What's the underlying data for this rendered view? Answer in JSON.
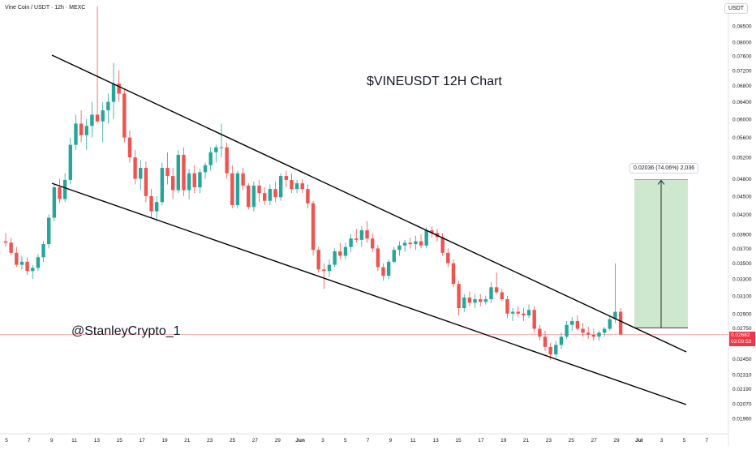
{
  "header": {
    "symbol": "Vine Coin / USDT · 12h · MEXC",
    "currency": "USDT"
  },
  "title": "$VINEUSDT 12H Chart",
  "watermark": "@StanleyCrypto_1",
  "measure": {
    "label": "0.02036 (74.06%) 2,036",
    "from_price": 0.0275,
    "to_price": 0.04786,
    "fill": "#c8e6c9"
  },
  "current_price": {
    "price": "0.02682",
    "countdown": "03:09:53",
    "value": 0.02682
  },
  "colors": {
    "up": "#26a69a",
    "down": "#ef5350",
    "line": "#000000",
    "price_line": "#f23645"
  },
  "chart_data": {
    "type": "candlestick",
    "interval": "12h",
    "y_scale": "log",
    "ylim": [
      0.0188,
      0.0915
    ],
    "y_ticks": [
      "0.08500",
      "0.08000",
      "0.07600",
      "0.07200",
      "0.06800",
      "0.06400",
      "0.06000",
      "0.05600",
      "0.05200",
      "0.04800",
      "0.04500",
      "0.04200",
      "0.03900",
      "0.03700",
      "0.03500",
      "0.03300",
      "0.03100",
      "0.02900",
      "0.02750",
      "0.02600",
      "0.02450",
      "0.02310",
      "0.02190",
      "0.02070",
      "0.01960"
    ],
    "x_ticks": [
      "5",
      "7",
      "9",
      "11",
      "13",
      "15",
      "17",
      "19",
      "21",
      "23",
      "25",
      "27",
      "29",
      "Jun",
      "3",
      "5",
      "7",
      "9",
      "11",
      "13",
      "15",
      "17",
      "19",
      "21",
      "23",
      "25",
      "27",
      "29",
      "Jul",
      "3",
      "5",
      "7"
    ],
    "candles": [
      {
        "o": 0.038,
        "h": 0.0392,
        "l": 0.0372,
        "c": 0.0378
      },
      {
        "o": 0.0378,
        "h": 0.0385,
        "l": 0.0361,
        "c": 0.0364
      },
      {
        "o": 0.0364,
        "h": 0.0372,
        "l": 0.0345,
        "c": 0.0348
      },
      {
        "o": 0.0348,
        "h": 0.036,
        "l": 0.0342,
        "c": 0.0352
      },
      {
        "o": 0.0352,
        "h": 0.0358,
        "l": 0.0335,
        "c": 0.034
      },
      {
        "o": 0.034,
        "h": 0.0348,
        "l": 0.033,
        "c": 0.0344
      },
      {
        "o": 0.0344,
        "h": 0.0362,
        "l": 0.034,
        "c": 0.0358
      },
      {
        "o": 0.0358,
        "h": 0.038,
        "l": 0.0352,
        "c": 0.0376
      },
      {
        "o": 0.0376,
        "h": 0.042,
        "l": 0.037,
        "c": 0.0415
      },
      {
        "o": 0.0415,
        "h": 0.047,
        "l": 0.041,
        "c": 0.0465
      },
      {
        "o": 0.0465,
        "h": 0.048,
        "l": 0.0438,
        "c": 0.0445
      },
      {
        "o": 0.0445,
        "h": 0.049,
        "l": 0.044,
        "c": 0.0478
      },
      {
        "o": 0.0478,
        "h": 0.056,
        "l": 0.047,
        "c": 0.0545
      },
      {
        "o": 0.0545,
        "h": 0.061,
        "l": 0.0535,
        "c": 0.059
      },
      {
        "o": 0.059,
        "h": 0.062,
        "l": 0.055,
        "c": 0.0565
      },
      {
        "o": 0.0565,
        "h": 0.06,
        "l": 0.0535,
        "c": 0.0585
      },
      {
        "o": 0.0585,
        "h": 0.064,
        "l": 0.056,
        "c": 0.061
      },
      {
        "o": 0.061,
        "h": 0.0915,
        "l": 0.059,
        "c": 0.0595
      },
      {
        "o": 0.0595,
        "h": 0.064,
        "l": 0.055,
        "c": 0.062
      },
      {
        "o": 0.062,
        "h": 0.066,
        "l": 0.059,
        "c": 0.064
      },
      {
        "o": 0.064,
        "h": 0.074,
        "l": 0.06,
        "c": 0.0685
      },
      {
        "o": 0.0685,
        "h": 0.072,
        "l": 0.064,
        "c": 0.066
      },
      {
        "o": 0.066,
        "h": 0.067,
        "l": 0.055,
        "c": 0.056
      },
      {
        "o": 0.056,
        "h": 0.0575,
        "l": 0.051,
        "c": 0.052
      },
      {
        "o": 0.052,
        "h": 0.0535,
        "l": 0.047,
        "c": 0.048
      },
      {
        "o": 0.048,
        "h": 0.0515,
        "l": 0.046,
        "c": 0.05
      },
      {
        "o": 0.05,
        "h": 0.0512,
        "l": 0.044,
        "c": 0.045
      },
      {
        "o": 0.045,
        "h": 0.0462,
        "l": 0.0415,
        "c": 0.0425
      },
      {
        "o": 0.0425,
        "h": 0.045,
        "l": 0.041,
        "c": 0.044
      },
      {
        "o": 0.044,
        "h": 0.051,
        "l": 0.0435,
        "c": 0.05
      },
      {
        "o": 0.05,
        "h": 0.053,
        "l": 0.047,
        "c": 0.0485
      },
      {
        "o": 0.0485,
        "h": 0.05,
        "l": 0.0445,
        "c": 0.046
      },
      {
        "o": 0.046,
        "h": 0.0535,
        "l": 0.0455,
        "c": 0.0525
      },
      {
        "o": 0.0525,
        "h": 0.054,
        "l": 0.045,
        "c": 0.046
      },
      {
        "o": 0.046,
        "h": 0.0498,
        "l": 0.0445,
        "c": 0.049
      },
      {
        "o": 0.049,
        "h": 0.0505,
        "l": 0.0455,
        "c": 0.0465
      },
      {
        "o": 0.0465,
        "h": 0.0498,
        "l": 0.0455,
        "c": 0.0492
      },
      {
        "o": 0.0492,
        "h": 0.051,
        "l": 0.048,
        "c": 0.0505
      },
      {
        "o": 0.0505,
        "h": 0.054,
        "l": 0.0495,
        "c": 0.053
      },
      {
        "o": 0.053,
        "h": 0.0545,
        "l": 0.051,
        "c": 0.054
      },
      {
        "o": 0.054,
        "h": 0.059,
        "l": 0.052,
        "c": 0.054
      },
      {
        "o": 0.054,
        "h": 0.055,
        "l": 0.048,
        "c": 0.049
      },
      {
        "o": 0.049,
        "h": 0.0505,
        "l": 0.043,
        "c": 0.0435
      },
      {
        "o": 0.0435,
        "h": 0.0495,
        "l": 0.043,
        "c": 0.049
      },
      {
        "o": 0.049,
        "h": 0.05,
        "l": 0.046,
        "c": 0.0468
      },
      {
        "o": 0.0468,
        "h": 0.0472,
        "l": 0.0428,
        "c": 0.0432
      },
      {
        "o": 0.0432,
        "h": 0.0475,
        "l": 0.0425,
        "c": 0.0468
      },
      {
        "o": 0.0468,
        "h": 0.0478,
        "l": 0.044,
        "c": 0.0455
      },
      {
        "o": 0.0455,
        "h": 0.0465,
        "l": 0.0435,
        "c": 0.0442
      },
      {
        "o": 0.0442,
        "h": 0.047,
        "l": 0.0435,
        "c": 0.0462
      },
      {
        "o": 0.0462,
        "h": 0.0475,
        "l": 0.044,
        "c": 0.0448
      },
      {
        "o": 0.0448,
        "h": 0.049,
        "l": 0.0442,
        "c": 0.0485
      },
      {
        "o": 0.0485,
        "h": 0.0495,
        "l": 0.0465,
        "c": 0.0478
      },
      {
        "o": 0.0478,
        "h": 0.049,
        "l": 0.0455,
        "c": 0.0462
      },
      {
        "o": 0.0462,
        "h": 0.0478,
        "l": 0.0455,
        "c": 0.0472
      },
      {
        "o": 0.0472,
        "h": 0.048,
        "l": 0.0455,
        "c": 0.0462
      },
      {
        "o": 0.0462,
        "h": 0.047,
        "l": 0.043,
        "c": 0.0438
      },
      {
        "o": 0.0438,
        "h": 0.0442,
        "l": 0.036,
        "c": 0.0368
      },
      {
        "o": 0.0368,
        "h": 0.0372,
        "l": 0.0338,
        "c": 0.0342
      },
      {
        "o": 0.0342,
        "h": 0.035,
        "l": 0.0318,
        "c": 0.034
      },
      {
        "o": 0.034,
        "h": 0.0355,
        "l": 0.0333,
        "c": 0.0348
      },
      {
        "o": 0.0348,
        "h": 0.037,
        "l": 0.0345,
        "c": 0.0366
      },
      {
        "o": 0.0366,
        "h": 0.0378,
        "l": 0.0355,
        "c": 0.036
      },
      {
        "o": 0.036,
        "h": 0.0378,
        "l": 0.0355,
        "c": 0.0372
      },
      {
        "o": 0.0372,
        "h": 0.039,
        "l": 0.0365,
        "c": 0.0384
      },
      {
        "o": 0.0384,
        "h": 0.0398,
        "l": 0.0378,
        "c": 0.0382
      },
      {
        "o": 0.0382,
        "h": 0.0402,
        "l": 0.0372,
        "c": 0.0396
      },
      {
        "o": 0.0396,
        "h": 0.041,
        "l": 0.0378,
        "c": 0.0384
      },
      {
        "o": 0.0384,
        "h": 0.0392,
        "l": 0.0365,
        "c": 0.037
      },
      {
        "o": 0.037,
        "h": 0.0375,
        "l": 0.034,
        "c": 0.0345
      },
      {
        "o": 0.0345,
        "h": 0.035,
        "l": 0.0328,
        "c": 0.0334
      },
      {
        "o": 0.0334,
        "h": 0.0355,
        "l": 0.033,
        "c": 0.0352
      },
      {
        "o": 0.0352,
        "h": 0.0372,
        "l": 0.035,
        "c": 0.0368
      },
      {
        "o": 0.0368,
        "h": 0.038,
        "l": 0.036,
        "c": 0.0374
      },
      {
        "o": 0.0374,
        "h": 0.0382,
        "l": 0.0365,
        "c": 0.0378
      },
      {
        "o": 0.0378,
        "h": 0.0385,
        "l": 0.037,
        "c": 0.0376
      },
      {
        "o": 0.0376,
        "h": 0.0388,
        "l": 0.0368,
        "c": 0.038
      },
      {
        "o": 0.038,
        "h": 0.039,
        "l": 0.037,
        "c": 0.0374
      },
      {
        "o": 0.0374,
        "h": 0.04,
        "l": 0.037,
        "c": 0.0396
      },
      {
        "o": 0.0396,
        "h": 0.0402,
        "l": 0.0385,
        "c": 0.0392
      },
      {
        "o": 0.0392,
        "h": 0.0398,
        "l": 0.038,
        "c": 0.0386
      },
      {
        "o": 0.0386,
        "h": 0.0392,
        "l": 0.036,
        "c": 0.0364
      },
      {
        "o": 0.0364,
        "h": 0.037,
        "l": 0.0345,
        "c": 0.035
      },
      {
        "o": 0.035,
        "h": 0.0355,
        "l": 0.032,
        "c": 0.0324
      },
      {
        "o": 0.0324,
        "h": 0.0328,
        "l": 0.0288,
        "c": 0.0296
      },
      {
        "o": 0.0296,
        "h": 0.0312,
        "l": 0.0292,
        "c": 0.0308
      },
      {
        "o": 0.0308,
        "h": 0.0315,
        "l": 0.0298,
        "c": 0.0302
      },
      {
        "o": 0.0302,
        "h": 0.0312,
        "l": 0.0296,
        "c": 0.0306
      },
      {
        "o": 0.0306,
        "h": 0.0312,
        "l": 0.0298,
        "c": 0.0303
      },
      {
        "o": 0.0303,
        "h": 0.031,
        "l": 0.03,
        "c": 0.0306
      },
      {
        "o": 0.0306,
        "h": 0.0326,
        "l": 0.0302,
        "c": 0.032
      },
      {
        "o": 0.032,
        "h": 0.0338,
        "l": 0.0312,
        "c": 0.0314
      },
      {
        "o": 0.0314,
        "h": 0.0318,
        "l": 0.0304,
        "c": 0.0306
      },
      {
        "o": 0.0306,
        "h": 0.031,
        "l": 0.0285,
        "c": 0.029
      },
      {
        "o": 0.029,
        "h": 0.0296,
        "l": 0.0282,
        "c": 0.0292
      },
      {
        "o": 0.0292,
        "h": 0.0298,
        "l": 0.0286,
        "c": 0.029
      },
      {
        "o": 0.029,
        "h": 0.0296,
        "l": 0.0282,
        "c": 0.0288
      },
      {
        "o": 0.0288,
        "h": 0.03,
        "l": 0.0285,
        "c": 0.0294
      },
      {
        "o": 0.0294,
        "h": 0.0298,
        "l": 0.027,
        "c": 0.0274
      },
      {
        "o": 0.0274,
        "h": 0.0278,
        "l": 0.0262,
        "c": 0.0266
      },
      {
        "o": 0.0266,
        "h": 0.0272,
        "l": 0.0252,
        "c": 0.0256
      },
      {
        "o": 0.0256,
        "h": 0.026,
        "l": 0.0244,
        "c": 0.0249
      },
      {
        "o": 0.0249,
        "h": 0.0262,
        "l": 0.0246,
        "c": 0.0258
      },
      {
        "o": 0.0258,
        "h": 0.027,
        "l": 0.0254,
        "c": 0.0266
      },
      {
        "o": 0.0266,
        "h": 0.0282,
        "l": 0.0264,
        "c": 0.0278
      },
      {
        "o": 0.0278,
        "h": 0.0286,
        "l": 0.0272,
        "c": 0.0282
      },
      {
        "o": 0.0282,
        "h": 0.0288,
        "l": 0.0272,
        "c": 0.0274
      },
      {
        "o": 0.0274,
        "h": 0.028,
        "l": 0.0266,
        "c": 0.027
      },
      {
        "o": 0.027,
        "h": 0.0276,
        "l": 0.0264,
        "c": 0.0268
      },
      {
        "o": 0.0268,
        "h": 0.0274,
        "l": 0.0262,
        "c": 0.0266
      },
      {
        "o": 0.0266,
        "h": 0.0272,
        "l": 0.0262,
        "c": 0.027
      },
      {
        "o": 0.027,
        "h": 0.0276,
        "l": 0.0266,
        "c": 0.0274
      },
      {
        "o": 0.0274,
        "h": 0.0288,
        "l": 0.0272,
        "c": 0.0284
      },
      {
        "o": 0.0284,
        "h": 0.035,
        "l": 0.028,
        "c": 0.0292
      },
      {
        "o": 0.0292,
        "h": 0.0296,
        "l": 0.027,
        "c": 0.02682
      }
    ]
  }
}
